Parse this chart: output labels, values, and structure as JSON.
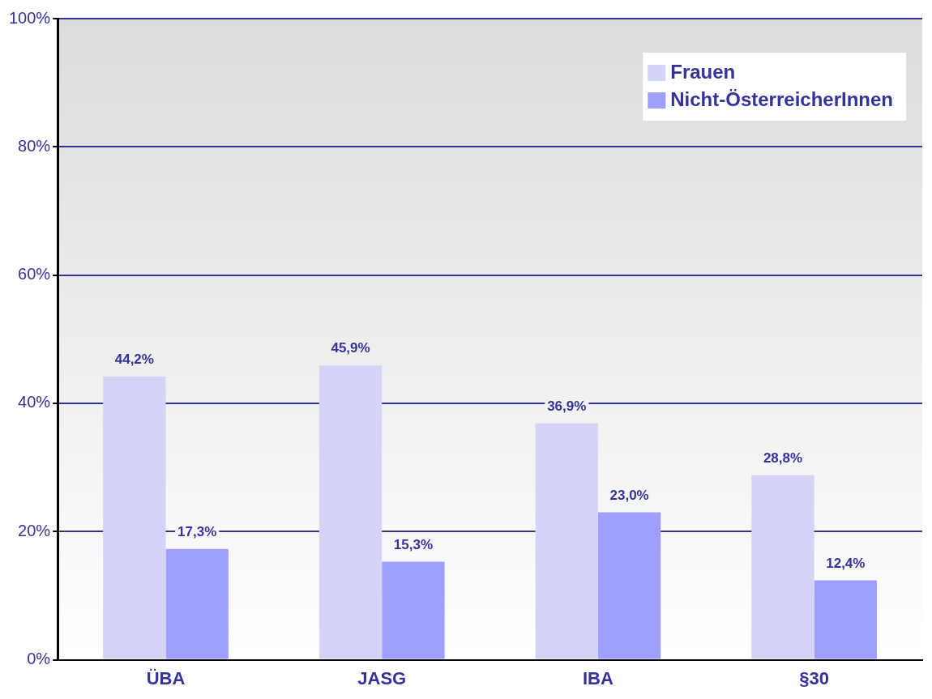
{
  "chart_data": {
    "type": "bar",
    "categories": [
      "ÜBA",
      "JASG",
      "IBA",
      "§30"
    ],
    "series": [
      {
        "name": "Frauen",
        "color": "#d4d4f7",
        "values": [
          44.2,
          45.9,
          36.9,
          28.8
        ],
        "value_labels": [
          "44,2%",
          "45,9%",
          "36,9%",
          "28,8%"
        ]
      },
      {
        "name": "Nicht-ÖsterreicherInnen",
        "color": "#9f9fff",
        "values": [
          17.3,
          15.3,
          23.0,
          12.4
        ],
        "value_labels": [
          "17,3%",
          "15,3%",
          "23,0%",
          "12,4%"
        ]
      }
    ],
    "ylim": [
      0,
      100
    ],
    "yticks": [
      {
        "value": 0,
        "label": "0%"
      },
      {
        "value": 20,
        "label": "20%"
      },
      {
        "value": 40,
        "label": "40%"
      },
      {
        "value": 60,
        "label": "60%"
      },
      {
        "value": 80,
        "label": "80%"
      },
      {
        "value": 100,
        "label": "100%"
      }
    ],
    "grid": "y",
    "legend": "top right"
  }
}
